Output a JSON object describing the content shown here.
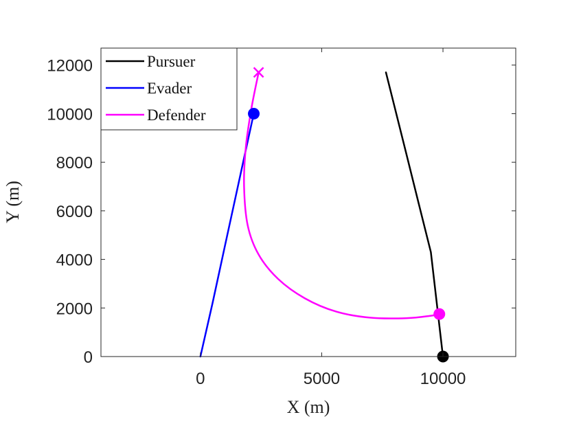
{
  "chart_data": {
    "type": "line",
    "title": "",
    "xlabel": "X (m)",
    "ylabel": "Y (m)",
    "xlim": [
      -4100,
      13000
    ],
    "ylim": [
      0,
      12700
    ],
    "xticks": [
      0,
      5000,
      10000
    ],
    "yticks": [
      0,
      2000,
      4000,
      6000,
      8000,
      10000,
      12000
    ],
    "grid": false,
    "legend_position": "top-left",
    "series": [
      {
        "name": "Pursuer",
        "color": "#000000",
        "x": [
          7650,
          8500,
          9000,
          9500,
          10000
        ],
        "y": [
          11700,
          8300,
          6300,
          4300,
          0
        ],
        "end_marker": "circle"
      },
      {
        "name": "Evader",
        "color": "#0000ff",
        "x": [
          0,
          500,
          1000,
          1500,
          2000,
          2200
        ],
        "y": [
          0,
          2200,
          4500,
          6800,
          9100,
          10000
        ],
        "end_marker": "circle"
      },
      {
        "name": "Defender",
        "color": "#ff00ff",
        "x": [
          2400,
          2100,
          1870,
          1800,
          1950,
          2400,
          3200,
          4300,
          5600,
          7000,
          8500,
          9500,
          9850
        ],
        "y": [
          11700,
          10200,
          8600,
          7000,
          5400,
          4200,
          3200,
          2400,
          1850,
          1600,
          1580,
          1680,
          1750
        ],
        "start_marker": "x",
        "end_marker": "circle"
      }
    ]
  }
}
